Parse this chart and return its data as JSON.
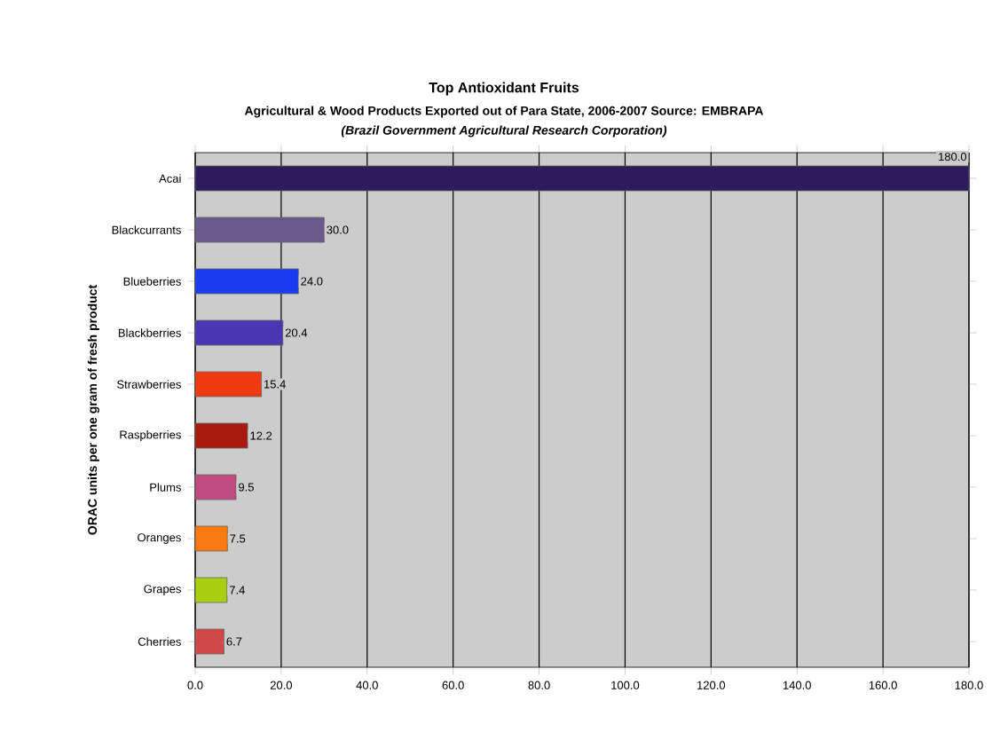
{
  "chart_data": {
    "type": "bar",
    "orientation": "horizontal",
    "title": "Top Antioxidant Fruits",
    "subtitle": "Agricultural & Wood Products Exported out of Para State, 2006-2007 Source: EMBRAPA",
    "annotations": [
      "(Brazil Government Agricultural Research Corporation)"
    ],
    "ylabel": "ORAC units per one gram of fresh product",
    "categories": [
      "Acai",
      "Blackcurrants",
      "Blueberries",
      "Blackberries",
      "Strawberries",
      "Raspberries",
      "Plums",
      "Oranges",
      "Grapes",
      "Cherries"
    ],
    "values": [
      180.0,
      30.0,
      24.0,
      20.4,
      15.4,
      12.2,
      9.5,
      7.5,
      7.4,
      6.7
    ],
    "value_labels": [
      "180.0",
      "30.0",
      "24.0",
      "20.4",
      "15.4",
      "12.2",
      "9.5",
      "7.5",
      "7.4",
      "6.7"
    ],
    "colors": [
      "#2e1a5c",
      "#6a5a8c",
      "#1a3cf0",
      "#4a36b0",
      "#f03a10",
      "#a81a10",
      "#c04a80",
      "#f87a10",
      "#a8d010",
      "#d04848"
    ],
    "xlim": [
      0,
      180
    ],
    "xticks": [
      {
        "value": 0,
        "label": "0.0"
      },
      {
        "value": 20,
        "label": "20.0"
      },
      {
        "value": 40,
        "label": "40.0"
      },
      {
        "value": 60,
        "label": "60.0"
      },
      {
        "value": 80,
        "label": "80.0"
      },
      {
        "value": 100,
        "label": "100.0"
      },
      {
        "value": 120,
        "label": "120.0"
      },
      {
        "value": 140,
        "label": "140.0"
      },
      {
        "value": 160,
        "label": "160.0"
      },
      {
        "value": 180,
        "label": "180.0"
      }
    ],
    "grid": "x"
  }
}
